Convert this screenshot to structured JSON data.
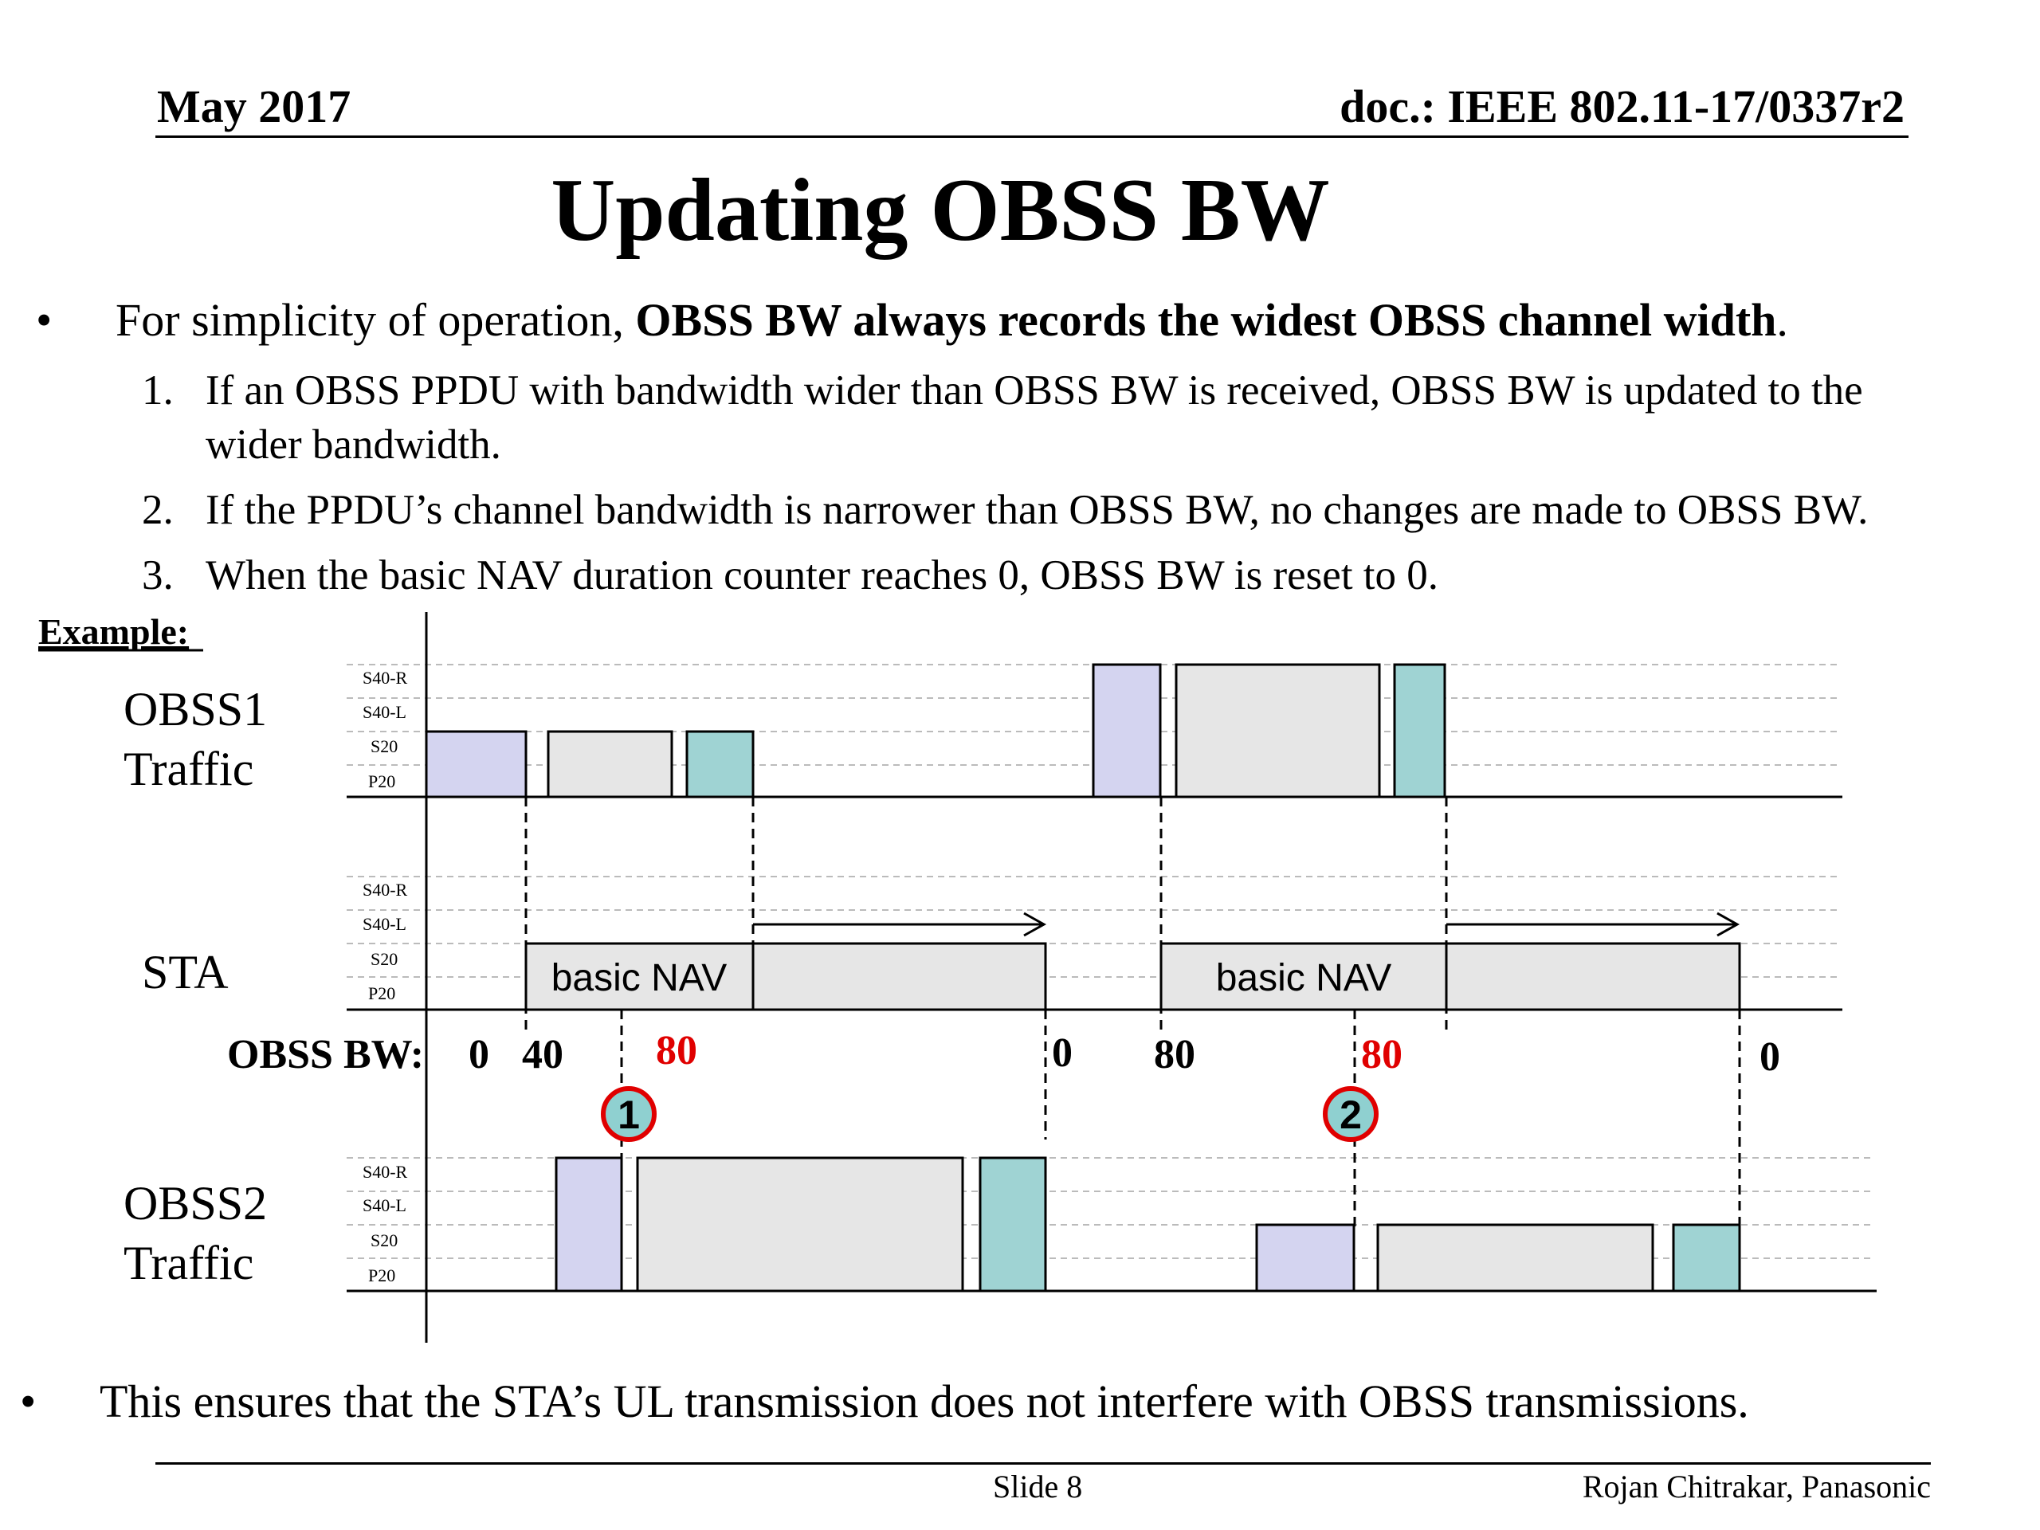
{
  "header": {
    "date": "May 2017",
    "doc": "doc.: IEEE 802.11-17/0337r2"
  },
  "title": "Updating OBSS BW",
  "bullets": {
    "main_prefix": "For simplicity of operation, ",
    "main_bold": "OBSS BW always records the widest OBSS channel width",
    "main_suffix": ".",
    "items": [
      {
        "num": "1.",
        "line1": "If an OBSS PPDU with bandwidth wider than OBSS BW is received, OBSS BW is updated to the",
        "line2": "wider bandwidth."
      },
      {
        "num": "2.",
        "line1": "If the PPDU’s channel bandwidth is narrower than OBSS BW, no changes are made to OBSS BW."
      },
      {
        "num": "3.",
        "line1": "When the basic NAV duration counter reaches 0, OBSS BW is reset to 0."
      }
    ],
    "final": "This ensures that the STA’s UL transmission does not interfere with OBSS transmissions."
  },
  "diagram": {
    "example_label": "Example:",
    "lane_labels": {
      "obss1_line1": "OBSS1",
      "obss1_line2": "Traffic",
      "sta": "STA",
      "obss2_line1": "OBSS2",
      "obss2_line2": "Traffic"
    },
    "channels": [
      "S40-R",
      "S40-L",
      "S20",
      "P20"
    ],
    "nav_label": "basic NAV",
    "obss_bw_label": "OBSS BW:",
    "obss_bw_values": [
      "0",
      "40",
      "80",
      "0",
      "80",
      "80",
      "0"
    ],
    "markers": [
      "1",
      "2"
    ],
    "colors": {
      "lavender": "#d4d4f0",
      "grey": "#e6e6e6",
      "teal": "#9fd3d3",
      "red": "#e00000"
    }
  },
  "footer": {
    "slide": "Slide 8",
    "author": "Rojan Chitrakar, Panasonic"
  }
}
